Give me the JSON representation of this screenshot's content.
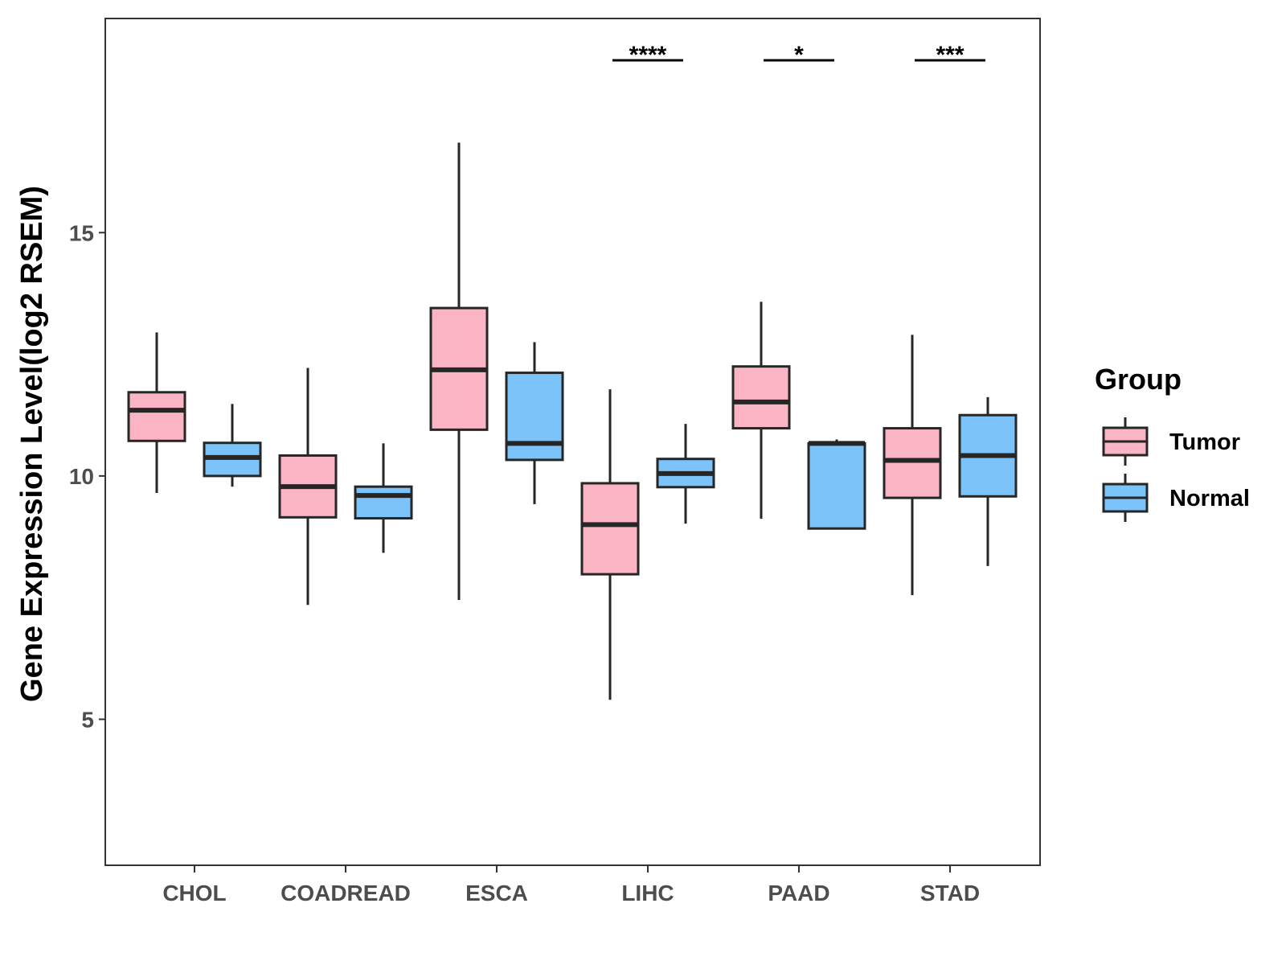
{
  "chart_data": {
    "type": "boxplot",
    "title": "",
    "xlabel": "",
    "ylabel": "Gene Expression Level(log2 RSEM)",
    "ylim": [
      2.0,
      19.4
    ],
    "yticks": [
      5,
      10,
      15
    ],
    "ytick_labels": [
      "5",
      "10",
      "15"
    ],
    "categories": [
      "CHOL",
      "COADREAD",
      "ESCA",
      "LIHC",
      "PAAD",
      "STAD"
    ],
    "legend": {
      "title": "Group",
      "position": "right"
    },
    "series": [
      {
        "name": "Tumor",
        "color": "#fbb4c3",
        "boxes": [
          {
            "category": "CHOL",
            "whisker_low": 9.65,
            "q1": 10.72,
            "median": 11.35,
            "q3": 11.72,
            "whisker_high": 12.95
          },
          {
            "category": "COADREAD",
            "whisker_low": 7.35,
            "q1": 9.15,
            "median": 9.78,
            "q3": 10.42,
            "whisker_high": 12.22
          },
          {
            "category": "ESCA",
            "whisker_low": 7.45,
            "q1": 10.95,
            "median": 12.18,
            "q3": 13.45,
            "whisker_high": 16.85
          },
          {
            "category": "LIHC",
            "whisker_low": 5.4,
            "q1": 7.98,
            "median": 9.0,
            "q3": 9.85,
            "whisker_high": 11.78
          },
          {
            "category": "PAAD",
            "whisker_low": 9.12,
            "q1": 10.98,
            "median": 11.52,
            "q3": 12.25,
            "whisker_high": 13.58
          },
          {
            "category": "STAD",
            "whisker_low": 7.55,
            "q1": 9.55,
            "median": 10.32,
            "q3": 10.98,
            "whisker_high": 12.9
          }
        ]
      },
      {
        "name": "Normal",
        "color": "#7bc3f8",
        "boxes": [
          {
            "category": "CHOL",
            "whisker_low": 9.78,
            "q1": 10.0,
            "median": 10.38,
            "q3": 10.68,
            "whisker_high": 11.48
          },
          {
            "category": "COADREAD",
            "whisker_low": 8.42,
            "q1": 9.13,
            "median": 9.6,
            "q3": 9.78,
            "whisker_high": 10.67
          },
          {
            "category": "ESCA",
            "whisker_low": 9.42,
            "q1": 10.33,
            "median": 10.67,
            "q3": 12.12,
            "whisker_high": 12.75
          },
          {
            "category": "LIHC",
            "whisker_low": 9.02,
            "q1": 9.77,
            "median": 10.05,
            "q3": 10.35,
            "whisker_high": 11.07
          },
          {
            "category": "PAAD",
            "whisker_low": 8.92,
            "q1": 8.92,
            "median": 10.67,
            "q3": 10.67,
            "whisker_high": 10.75
          },
          {
            "category": "STAD",
            "whisker_low": 8.15,
            "q1": 9.58,
            "median": 10.42,
            "q3": 11.25,
            "whisker_high": 11.62
          }
        ]
      }
    ],
    "significance": [
      {
        "category": "LIHC",
        "label": "****"
      },
      {
        "category": "PAAD",
        "label": "*"
      },
      {
        "category": "STAD",
        "label": "***"
      }
    ],
    "grid": false
  }
}
